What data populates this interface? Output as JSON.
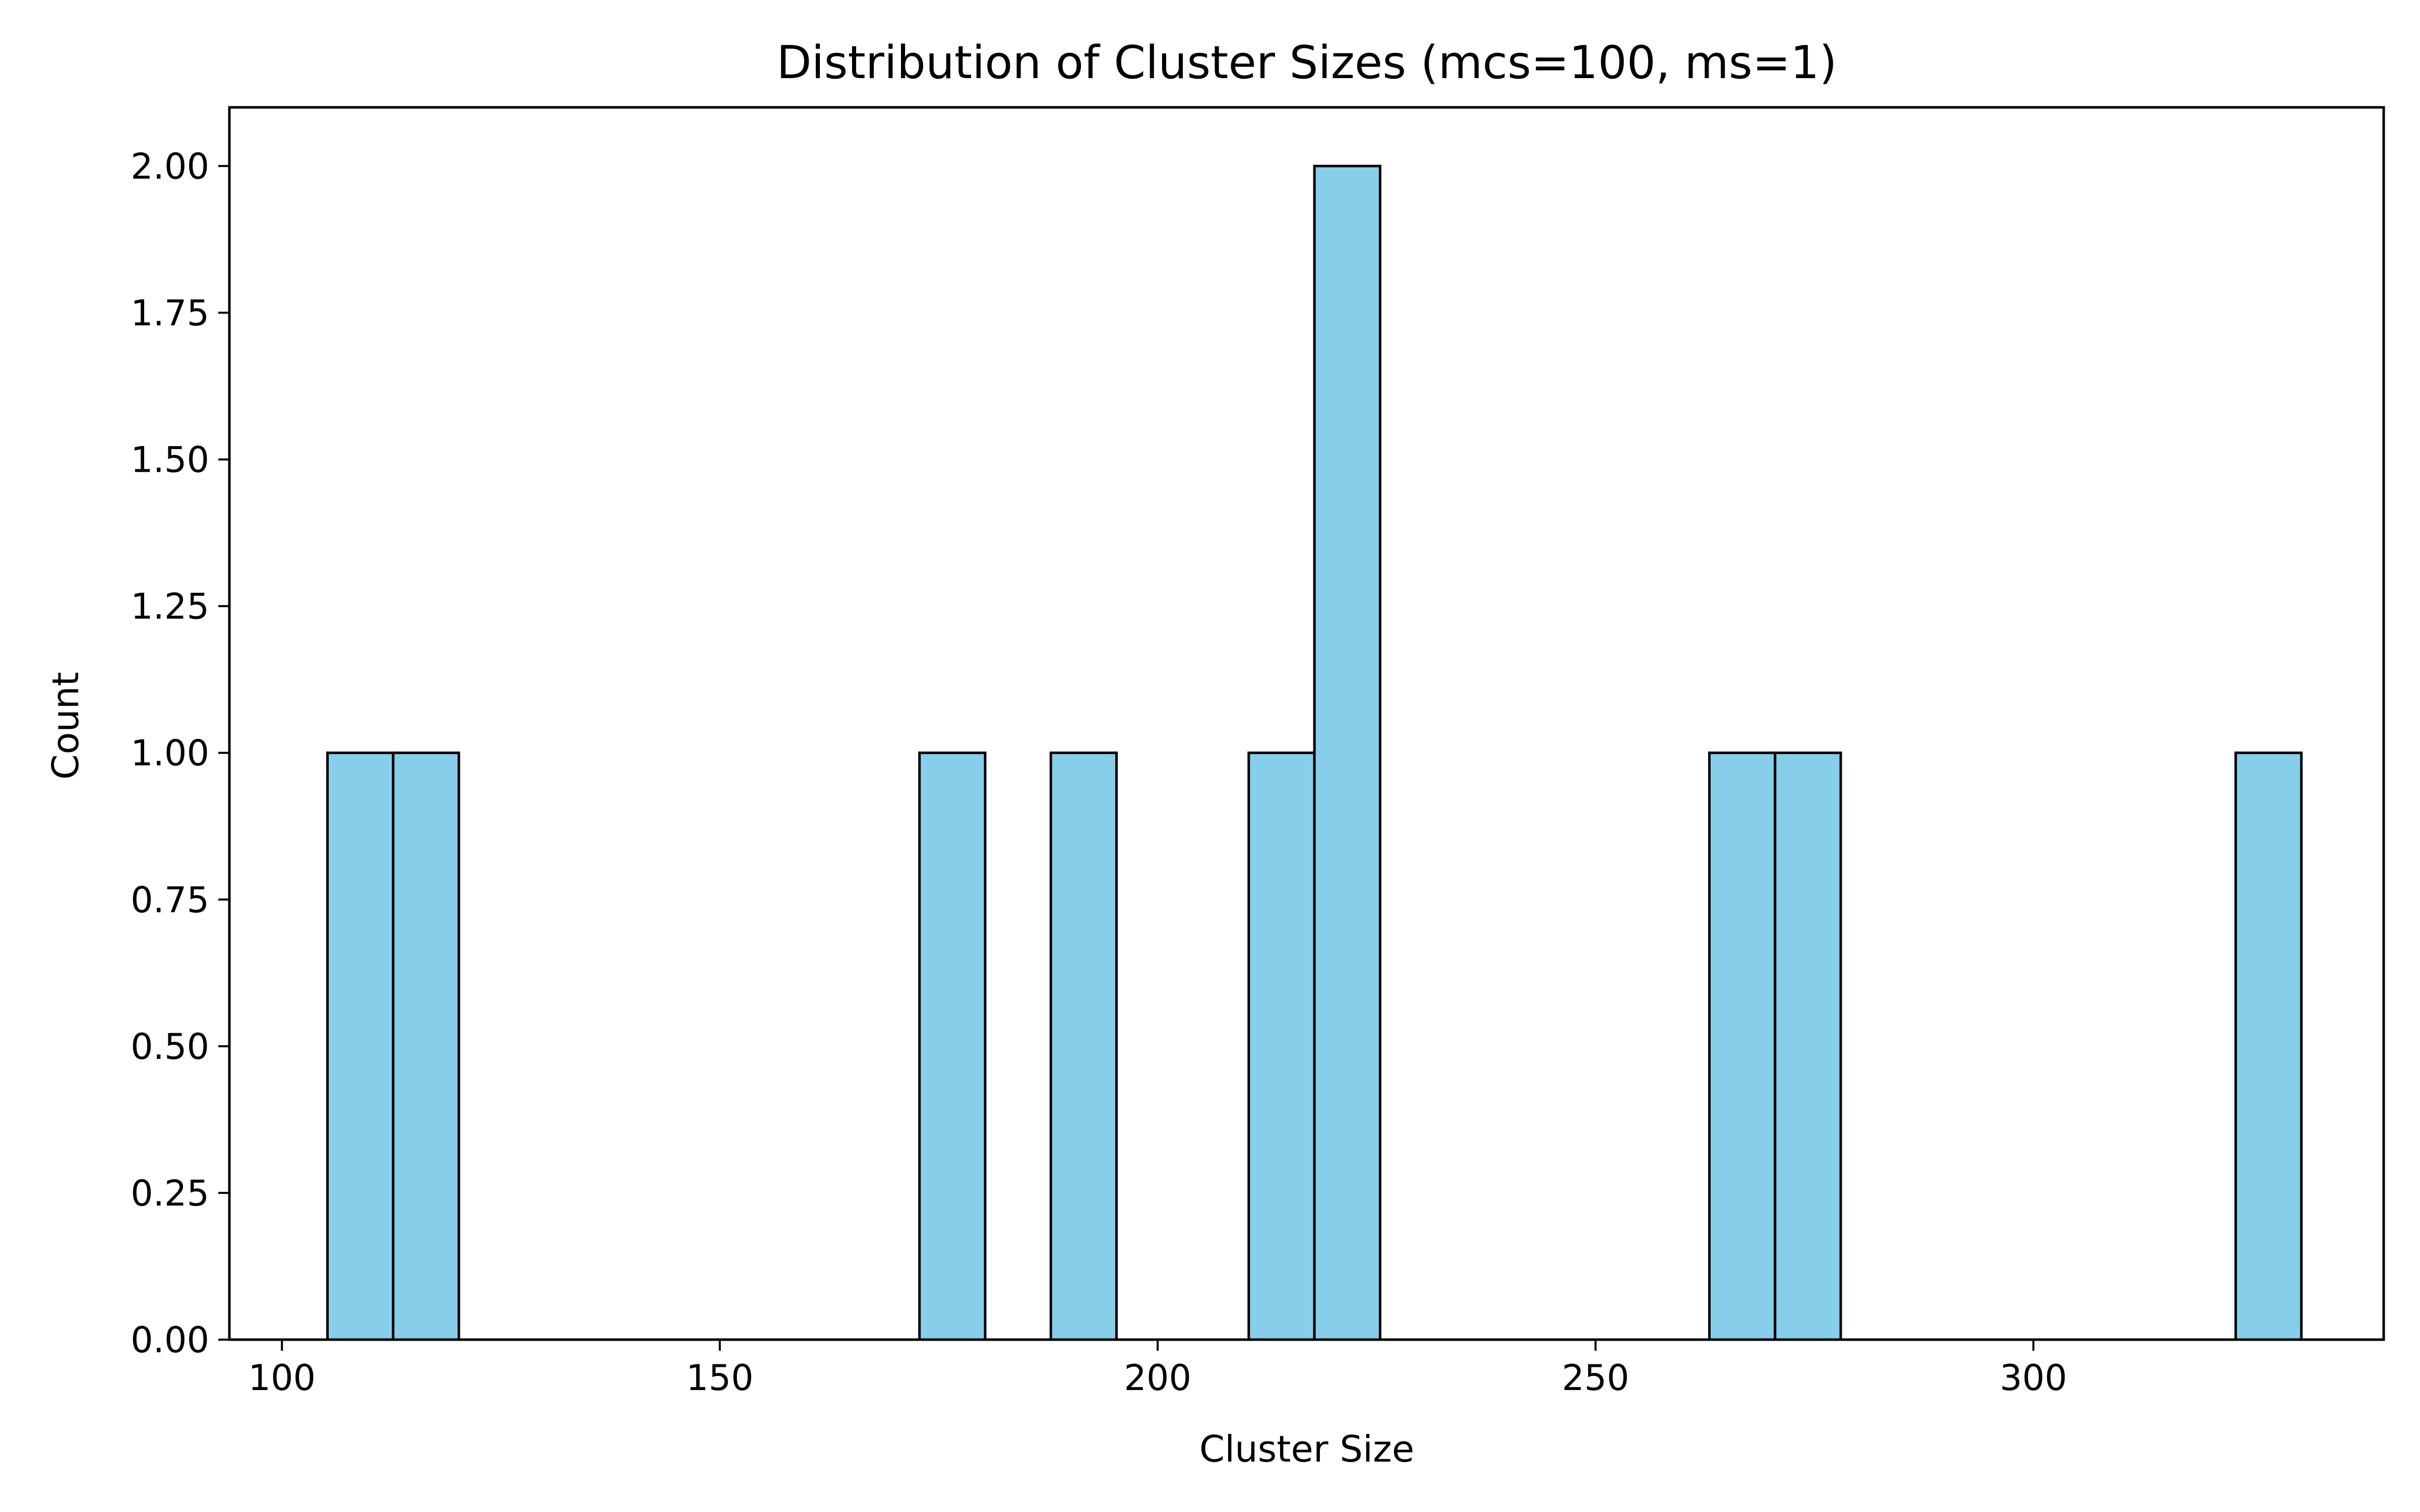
{
  "chart_data": {
    "type": "bar",
    "title": "Distribution of Cluster Sizes (mcs=100, ms=1)",
    "xlabel": "Cluster Size",
    "ylabel": "Count",
    "xlim": [
      94.0,
      340.0
    ],
    "ylim": [
      0.0,
      2.1
    ],
    "xticks": [
      100,
      150,
      200,
      250,
      300
    ],
    "xtick_labels": [
      "100",
      "150",
      "200",
      "250",
      "300"
    ],
    "yticks": [
      0.0,
      0.25,
      0.5,
      0.75,
      1.0,
      1.25,
      1.5,
      1.75,
      2.0
    ],
    "ytick_labels": [
      "0.00",
      "0.25",
      "0.50",
      "0.75",
      "1.00",
      "1.25",
      "1.50",
      "1.75",
      "2.00"
    ],
    "bin_width": 7.5,
    "bins": [
      {
        "start": 105.2,
        "count": 1
      },
      {
        "start": 112.7,
        "count": 1
      },
      {
        "start": 172.8,
        "count": 1
      },
      {
        "start": 187.8,
        "count": 1
      },
      {
        "start": 210.4,
        "count": 1
      },
      {
        "start": 217.9,
        "count": 2
      },
      {
        "start": 263.0,
        "count": 1
      },
      {
        "start": 270.5,
        "count": 1
      },
      {
        "start": 323.1,
        "count": 1
      }
    ],
    "bar_color": "#87ceeb",
    "edge_color": "#000000",
    "grid": false,
    "legend": "none"
  }
}
